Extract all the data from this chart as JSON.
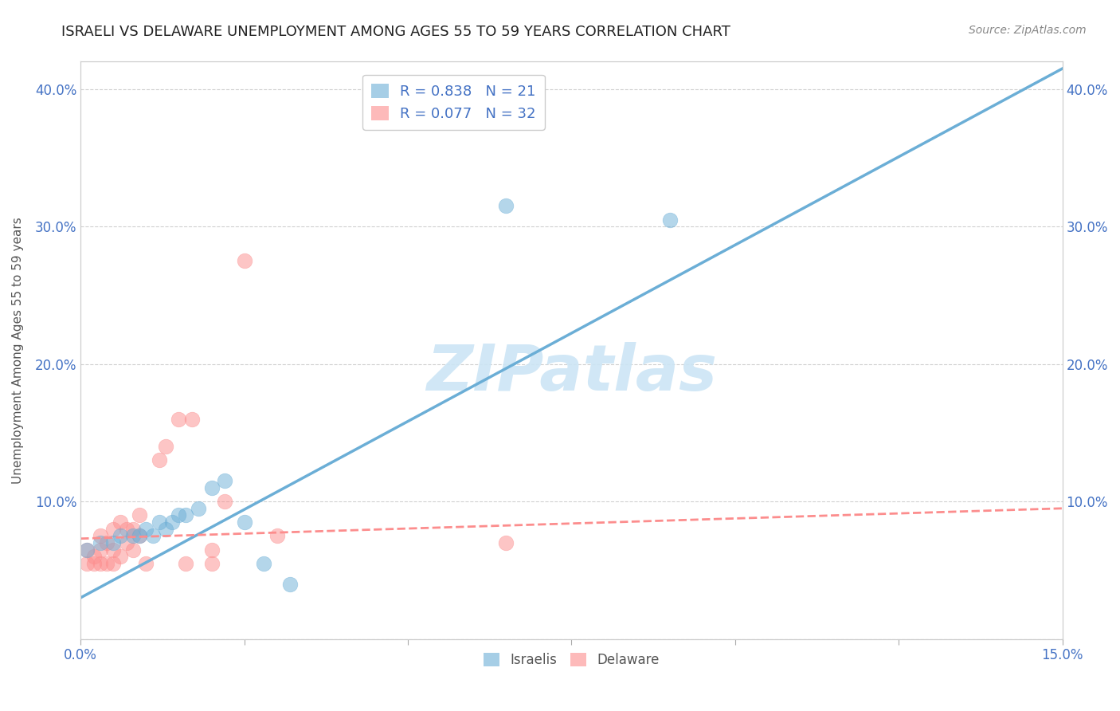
{
  "title": "ISRAELI VS DELAWARE UNEMPLOYMENT AMONG AGES 55 TO 59 YEARS CORRELATION CHART",
  "source": "Source: ZipAtlas.com",
  "ylabel": "Unemployment Among Ages 55 to 59 years",
  "xlim": [
    0.0,
    0.15
  ],
  "ylim": [
    0.0,
    0.42
  ],
  "xticks": [
    0.0,
    0.025,
    0.05,
    0.075,
    0.1,
    0.125,
    0.15
  ],
  "xtick_labels": [
    "0.0%",
    "",
    "",
    "",
    "",
    "",
    "15.0%"
  ],
  "yticks_left": [
    0.0,
    0.1,
    0.2,
    0.3,
    0.4
  ],
  "ytick_labels_left": [
    "",
    "10.0%",
    "20.0%",
    "30.0%",
    "40.0%"
  ],
  "ytick_labels_right": [
    "",
    "10.0%",
    "20.0%",
    "30.0%",
    "40.0%"
  ],
  "israeli_color": "#6baed6",
  "delaware_color": "#fc8d8d",
  "israeli_R": 0.838,
  "israeli_N": 21,
  "delaware_R": 0.077,
  "delaware_N": 32,
  "israeli_scatter_x": [
    0.001,
    0.003,
    0.005,
    0.006,
    0.008,
    0.009,
    0.01,
    0.011,
    0.012,
    0.013,
    0.014,
    0.015,
    0.016,
    0.018,
    0.02,
    0.022,
    0.025,
    0.028,
    0.032,
    0.065,
    0.09
  ],
  "israeli_scatter_y": [
    0.065,
    0.07,
    0.07,
    0.075,
    0.075,
    0.075,
    0.08,
    0.075,
    0.085,
    0.08,
    0.085,
    0.09,
    0.09,
    0.095,
    0.11,
    0.115,
    0.085,
    0.055,
    0.04,
    0.315,
    0.305
  ],
  "delaware_scatter_x": [
    0.001,
    0.001,
    0.002,
    0.002,
    0.003,
    0.003,
    0.003,
    0.004,
    0.004,
    0.005,
    0.005,
    0.005,
    0.006,
    0.006,
    0.007,
    0.007,
    0.008,
    0.008,
    0.009,
    0.009,
    0.01,
    0.012,
    0.013,
    0.015,
    0.016,
    0.017,
    0.02,
    0.02,
    0.022,
    0.025,
    0.03,
    0.065
  ],
  "delaware_scatter_y": [
    0.055,
    0.065,
    0.055,
    0.06,
    0.055,
    0.065,
    0.075,
    0.055,
    0.07,
    0.055,
    0.065,
    0.08,
    0.06,
    0.085,
    0.07,
    0.08,
    0.065,
    0.08,
    0.09,
    0.075,
    0.055,
    0.13,
    0.14,
    0.16,
    0.055,
    0.16,
    0.055,
    0.065,
    0.1,
    0.275,
    0.075,
    0.07
  ],
  "israeli_line_x": [
    0.0,
    0.15
  ],
  "israeli_line_y": [
    0.03,
    0.415
  ],
  "delaware_line_x": [
    0.0,
    0.15
  ],
  "delaware_line_y": [
    0.073,
    0.095
  ],
  "watermark": "ZIPatlas",
  "background_color": "#ffffff",
  "grid_color": "#d0d0d0"
}
